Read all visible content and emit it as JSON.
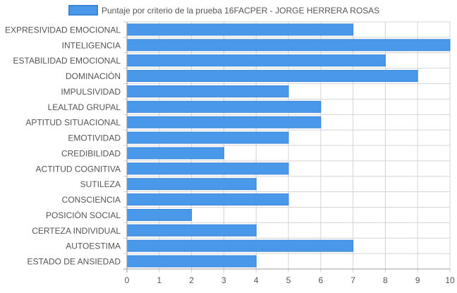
{
  "colors": {
    "bar_fill": "#4a98ea",
    "bar_stroke": "#3b86d8",
    "grid": "#d4d4d4",
    "axis_line": "#9e9e9e",
    "label_text": "#555555",
    "legend_text": "#555555"
  },
  "chart_data": {
    "type": "bar",
    "orientation": "horizontal",
    "series": [
      {
        "name": "Puntaje por criterio de la prueba 16FACPER - JORGE HERRERA ROSAS",
        "values": [
          7,
          10,
          8,
          9,
          5,
          6,
          6,
          5,
          3,
          5,
          4,
          5,
          2,
          4,
          7,
          4
        ]
      }
    ],
    "categories": [
      "EXPRESIVIDAD EMOCIONAL",
      "INTELIGENCIA",
      "ESTABILIDAD EMOCIONAL",
      "DOMINACIÓN",
      "IMPULSIVIDAD",
      "LEALTAD GRUPAL",
      "APTITUD SITUACIONAL",
      "EMOTIVIDAD",
      "CREDIBILIDAD",
      "ACTITUD COGNITIVA",
      "SUTILEZA",
      "CONSCIENCIA",
      "POSICIÓN SOCIAL",
      "CERTEZA INDIVIDUAL",
      "AUTOESTIMA",
      "ESTADO DE ANSIEDAD"
    ],
    "x_ticks": [
      "0",
      "1",
      "2",
      "3",
      "4",
      "5",
      "6",
      "7",
      "8",
      "9",
      "10"
    ],
    "xlim": [
      0,
      10
    ],
    "grid": true,
    "legend_position": "top-center"
  }
}
